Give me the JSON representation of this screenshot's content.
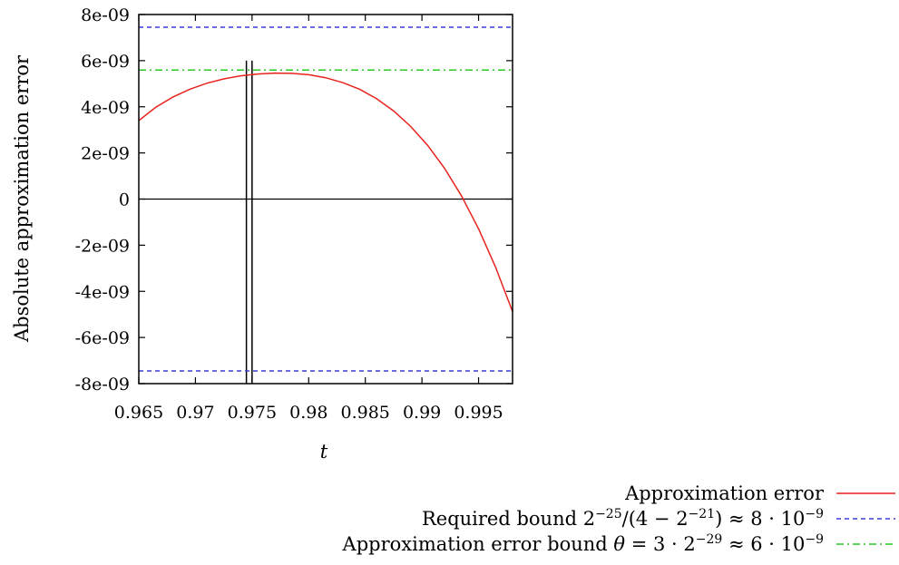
{
  "chart_data": {
    "type": "line",
    "title": "",
    "xlabel": "t",
    "ylabel": "Absolute approximation error",
    "xlim": [
      0.965,
      0.998
    ],
    "ylim": [
      -8e-09,
      8e-09
    ],
    "x_ticks": [
      0.965,
      0.97,
      0.975,
      0.98,
      0.985,
      0.99,
      0.995
    ],
    "x_tick_labels": [
      "0.965",
      "0.97",
      "0.975",
      "0.98",
      "0.985",
      "0.99",
      "0.995"
    ],
    "y_ticks": [
      -8e-09,
      -6e-09,
      -4e-09,
      -2e-09,
      0,
      2e-09,
      4e-09,
      6e-09,
      8e-09
    ],
    "y_tick_labels": [
      "-8e-09",
      "-6e-09",
      "-4e-09",
      "-2e-09",
      "0",
      "2e-09",
      "4e-09",
      "6e-09",
      "8e-09"
    ],
    "grid": false,
    "legend_position": "bottom-right, outside plot",
    "zero_line": true,
    "vertical_markers": [
      0.9745,
      0.975
    ],
    "vertical_marker_top": 6e-09,
    "series": [
      {
        "name": "Approximation error",
        "color": "#e8231d",
        "style": "solid",
        "x": [
          0.965,
          0.9665,
          0.968,
          0.9695,
          0.971,
          0.9725,
          0.974,
          0.9755,
          0.977,
          0.9785,
          0.98,
          0.9815,
          0.983,
          0.9845,
          0.986,
          0.9875,
          0.989,
          0.9905,
          0.992,
          0.9935,
          0.995,
          0.9965,
          0.998
        ],
        "y": [
          3.4e-09,
          3.98e-09,
          4.42e-09,
          4.76e-09,
          5.02e-09,
          5.21e-09,
          5.34e-09,
          5.42e-09,
          5.46e-09,
          5.45e-09,
          5.39e-09,
          5.26e-09,
          5.05e-09,
          4.76e-09,
          4.35e-09,
          3.82e-09,
          3.15e-09,
          2.33e-09,
          1.33e-09,
          1.3e-10,
          -1.29e-09,
          -2.95e-09,
          -4.88e-09
        ]
      },
      {
        "name": "Required bound $2^{-25}/(4-2^{-21}) \\approx 8 \\cdot 10^{-9}$",
        "color": "#3c3cd8",
        "style": "dashed",
        "constant": 7.45e-09,
        "mirrored": true
      },
      {
        "name": "Approximation error bound $\\theta = 3 \\cdot 2^{-29} \\approx 6 \\cdot 10^{-9}$",
        "color": "#27c827",
        "style": "dashdot",
        "constant": 5.59e-09,
        "mirrored": false
      }
    ]
  },
  "legend": [
    {
      "label": "Approximation error",
      "color": "#e8231d",
      "dash": "",
      "parts": [
        {
          "t": "Approximation error"
        }
      ]
    },
    {
      "label": "Required bound 2^-25/(4 − 2^-21) ≈ 8 · 10^-9",
      "color": "#3c3cd8",
      "dash": "5 4",
      "parts": [
        {
          "t": "Required bound 2"
        },
        {
          "t": "−25",
          "sup": true
        },
        {
          "t": "/(4 − 2"
        },
        {
          "t": "−21",
          "sup": true
        },
        {
          "t": ") ≈ 8 · 10"
        },
        {
          "t": "−9",
          "sup": true
        }
      ]
    },
    {
      "label": "Approximation error bound θ = 3 · 2^-29 ≈ 6 · 10^-9",
      "color": "#27c827",
      "dash": "8 4 2 4",
      "parts": [
        {
          "t": "Approximation error bound "
        },
        {
          "t": "θ",
          "italic": true
        },
        {
          "t": " = 3 · 2"
        },
        {
          "t": "−29",
          "sup": true
        },
        {
          "t": " ≈ 6 · 10"
        },
        {
          "t": "−9",
          "sup": true
        }
      ]
    }
  ]
}
